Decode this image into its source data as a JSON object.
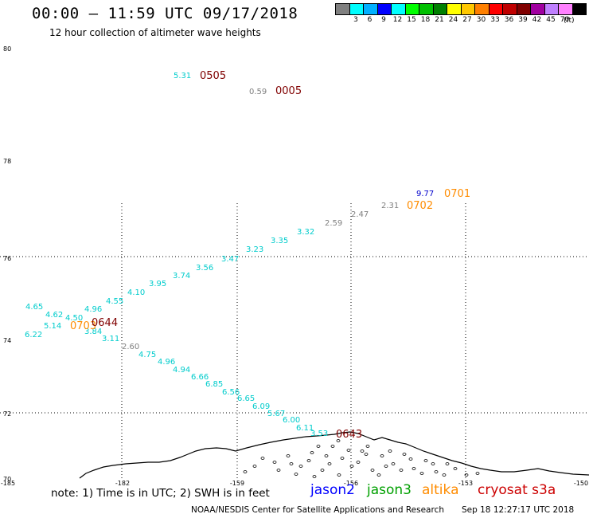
{
  "header": {
    "title": "00:00 – 11:59 UTC 09/17/2018",
    "subtitle": "12 hour collection of altimeter wave heights"
  },
  "legend": {
    "colors": [
      "#808080",
      "#00ffff",
      "#00b0ff",
      "#0000ff",
      "#00ffff",
      "#00ff00",
      "#00c000",
      "#008000",
      "#ffff00",
      "#ffc800",
      "#ff8000",
      "#ff0000",
      "#c00000",
      "#800000",
      "#a000a0",
      "#c080ff",
      "#ff80ff",
      "#000000"
    ],
    "labels": [
      "3",
      "6",
      "9",
      "12",
      "15",
      "18",
      "21",
      "24",
      "27",
      "30",
      "33",
      "36",
      "39",
      "42",
      "45",
      "70"
    ],
    "unit": "(ft)"
  },
  "axes": {
    "lat_labels": [
      "80",
      "78",
      "76",
      "74",
      "72",
      "70"
    ],
    "lon_labels": [
      "-185",
      "-182",
      "-159",
      "-156",
      "-153",
      "-150"
    ]
  },
  "observations": [
    {
      "text": "5.31",
      "color": "#00cccc"
    },
    {
      "text": "0.59",
      "color": "#808080"
    },
    {
      "text": "9.77",
      "color": "#0000cc"
    },
    {
      "text": "2.31",
      "color": "#808080"
    },
    {
      "text": "2.47",
      "color": "#808080"
    },
    {
      "text": "2.59",
      "color": "#808080"
    },
    {
      "text": "3.32",
      "color": "#00cccc"
    },
    {
      "text": "3.35",
      "color": "#00cccc"
    },
    {
      "text": "3.23",
      "color": "#00cccc"
    },
    {
      "text": "3.47",
      "color": "#00cccc"
    },
    {
      "text": "3.56",
      "color": "#00cccc"
    },
    {
      "text": "3.74",
      "color": "#00cccc"
    },
    {
      "text": "3.95",
      "color": "#00cccc"
    },
    {
      "text": "4.10",
      "color": "#00cccc"
    },
    {
      "text": "4.55",
      "color": "#00cccc"
    },
    {
      "text": "4.96",
      "color": "#00cccc"
    },
    {
      "text": "4.65",
      "color": "#00cccc"
    },
    {
      "text": "4.62",
      "color": "#00cccc"
    },
    {
      "text": "4.50",
      "color": "#00cccc"
    },
    {
      "text": "5.14",
      "color": "#00cccc"
    },
    {
      "text": "6.22",
      "color": "#00cccc"
    },
    {
      "text": "3.84",
      "color": "#00cccc"
    },
    {
      "text": "3.11",
      "color": "#00cccc"
    },
    {
      "text": "2.60",
      "color": "#808080"
    },
    {
      "text": "4.75",
      "color": "#00cccc"
    },
    {
      "text": "4.96",
      "color": "#00cccc"
    },
    {
      "text": "4.94",
      "color": "#00cccc"
    },
    {
      "text": "6.66",
      "color": "#00cccc"
    },
    {
      "text": "6.85",
      "color": "#00cccc"
    },
    {
      "text": "6.56",
      "color": "#00cccc"
    },
    {
      "text": "6.65",
      "color": "#00cccc"
    },
    {
      "text": "6.09",
      "color": "#00cccc"
    },
    {
      "text": "5.67",
      "color": "#00cccc"
    },
    {
      "text": "6.00",
      "color": "#00cccc"
    },
    {
      "text": "6.11",
      "color": "#00cccc"
    },
    {
      "text": "3.53",
      "color": "#00cccc"
    }
  ],
  "time_labels": [
    {
      "text": "0505",
      "color": "#800000"
    },
    {
      "text": "0005",
      "color": "#800000"
    },
    {
      "text": "0701",
      "color": "#ff8c00"
    },
    {
      "text": "0702",
      "color": "#ff8c00"
    },
    {
      "text": "0703",
      "color": "#ff8c00"
    },
    {
      "text": "0644",
      "color": "#800000"
    },
    {
      "text": "0643",
      "color": "#800000"
    }
  ],
  "footer": {
    "note": "note: 1) Time is in UTC; 2) SWH is in feet",
    "satellites": [
      {
        "name": "jason2",
        "color": "#0000ff"
      },
      {
        "name": "jason3",
        "color": "#00a000"
      },
      {
        "name": "altika",
        "color": "#ff8c00"
      },
      {
        "name": "cryosat s3a",
        "color": "#cc0000"
      }
    ],
    "credit": "NOAA/NESDIS Center for Satellite Applications and Research",
    "timestamp": "Sep 18 12:27:17 UTC 2018"
  }
}
